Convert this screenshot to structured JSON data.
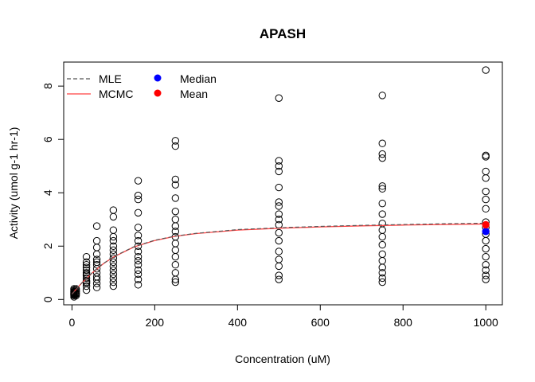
{
  "chart_data": {
    "type": "scatter",
    "title": "APASH",
    "xlabel": "Concentration (uM)",
    "ylabel": "Activity (umol g-1 hr-1)",
    "xlim": [
      -20,
      1040
    ],
    "ylim": [
      -0.2,
      8.9
    ],
    "xticks": [
      0,
      200,
      400,
      600,
      800,
      1000
    ],
    "yticks": [
      0,
      2,
      4,
      6,
      8
    ],
    "grid": false,
    "legend_position": "top-left",
    "legend": [
      {
        "label": "MLE",
        "kind": "line",
        "style": "dashed",
        "color": "#555555"
      },
      {
        "label": "MCMC",
        "kind": "line",
        "style": "solid",
        "color": "#ff4040"
      },
      {
        "label": "Median",
        "kind": "point",
        "color": "#0000ff"
      },
      {
        "label": "Mean",
        "kind": "point",
        "color": "#ff0000"
      }
    ],
    "observations": [
      {
        "x": 5,
        "y": [
          0.1,
          0.15,
          0.2,
          0.25,
          0.3,
          0.35,
          0.4,
          0.18,
          0.22,
          0.28
        ]
      },
      {
        "x": 10,
        "y": [
          0.15,
          0.2,
          0.25,
          0.3,
          0.35,
          0.4,
          0.3,
          0.22
        ]
      },
      {
        "x": 35,
        "y": [
          0.35,
          0.5,
          0.6,
          0.7,
          0.8,
          0.9,
          1.0,
          1.1,
          1.2,
          1.3,
          1.4,
          1.6,
          0.65,
          0.95
        ]
      },
      {
        "x": 60,
        "y": [
          0.45,
          0.6,
          0.75,
          0.85,
          1.0,
          1.15,
          1.3,
          1.4,
          1.5,
          1.7,
          1.95,
          2.2,
          2.75
        ]
      },
      {
        "x": 100,
        "y": [
          0.5,
          0.65,
          0.8,
          0.95,
          1.1,
          1.25,
          1.4,
          1.55,
          1.7,
          1.85,
          2.0,
          2.2,
          2.35,
          2.6,
          3.1,
          3.35
        ]
      },
      {
        "x": 160,
        "y": [
          0.55,
          0.75,
          0.95,
          1.1,
          1.3,
          1.45,
          1.6,
          1.8,
          2.0,
          2.2,
          2.4,
          2.7,
          3.25,
          3.75,
          3.9,
          4.45
        ]
      },
      {
        "x": 250,
        "y": [
          0.65,
          0.75,
          1.0,
          1.3,
          1.6,
          1.85,
          2.1,
          2.35,
          2.55,
          2.75,
          3.0,
          3.3,
          3.8,
          4.3,
          4.5,
          5.75,
          5.95
        ]
      },
      {
        "x": 500,
        "y": [
          0.75,
          0.9,
          1.25,
          1.5,
          1.8,
          2.2,
          2.5,
          2.8,
          3.0,
          3.2,
          3.5,
          3.65,
          4.2,
          4.8,
          5.0,
          5.2,
          7.55
        ]
      },
      {
        "x": 750,
        "y": [
          0.65,
          0.8,
          1.0,
          1.2,
          1.45,
          1.7,
          2.05,
          2.35,
          2.6,
          2.85,
          3.2,
          3.6,
          4.15,
          4.25,
          5.3,
          5.45,
          5.85,
          7.65
        ]
      },
      {
        "x": 1000,
        "y": [
          0.75,
          0.9,
          1.1,
          1.3,
          1.6,
          1.9,
          2.2,
          2.45,
          2.7,
          2.9,
          3.4,
          3.75,
          4.05,
          4.55,
          4.8,
          5.35,
          5.4,
          8.6
        ]
      }
    ],
    "median_point": {
      "x": 1000,
      "y": 2.55
    },
    "mean_point": {
      "x": 1000,
      "y": 2.8
    },
    "mle_curve": {
      "x": [
        0,
        10,
        25,
        50,
        75,
        100,
        150,
        200,
        250,
        300,
        400,
        500,
        600,
        700,
        800,
        900,
        1000
      ],
      "y": [
        0.2,
        0.38,
        0.64,
        1.02,
        1.34,
        1.6,
        1.98,
        2.22,
        2.38,
        2.48,
        2.62,
        2.69,
        2.74,
        2.78,
        2.81,
        2.84,
        2.86
      ]
    },
    "mcmc_curve": {
      "x": [
        0,
        10,
        25,
        50,
        75,
        100,
        150,
        200,
        250,
        300,
        400,
        500,
        600,
        700,
        800,
        900,
        1000
      ],
      "y": [
        0.2,
        0.38,
        0.64,
        1.01,
        1.33,
        1.59,
        1.97,
        2.21,
        2.37,
        2.47,
        2.6,
        2.67,
        2.72,
        2.76,
        2.79,
        2.81,
        2.83
      ]
    }
  }
}
